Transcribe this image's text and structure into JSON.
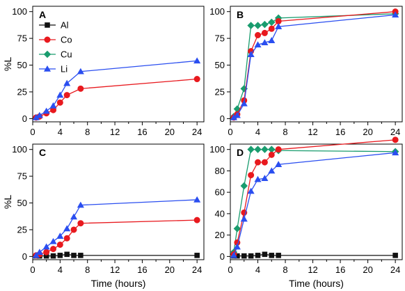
{
  "chart_data": [
    {
      "panel": "A",
      "type": "line",
      "xlabel": "",
      "ylabel": "%L",
      "xlim": [
        0,
        25
      ],
      "ylim": [
        -3,
        105
      ],
      "xticks": [
        "0",
        "4",
        "8",
        "12",
        "16",
        "20",
        "24"
      ],
      "yticks": [
        "0",
        "25",
        "50",
        "75",
        "100"
      ],
      "legend": {
        "placement": "top-left",
        "entries": [
          "Al",
          "Co",
          "Cu",
          "Li"
        ]
      },
      "series": [
        {
          "name": "Co",
          "color": "#e8191e",
          "marker": "circle",
          "x": [
            0.5,
            1,
            2,
            3,
            4,
            5,
            7,
            24
          ],
          "y": [
            1,
            2,
            5,
            8,
            15,
            22,
            28,
            37
          ]
        },
        {
          "name": "Li",
          "color": "#2a4ef0",
          "marker": "triangle",
          "x": [
            0.5,
            1,
            2,
            3,
            4,
            5,
            7,
            24
          ],
          "y": [
            1,
            3,
            7,
            12,
            22,
            33,
            44,
            54
          ]
        }
      ]
    },
    {
      "panel": "B",
      "type": "line",
      "xlabel": "",
      "ylabel": "",
      "xlim": [
        0,
        25
      ],
      "ylim": [
        -3,
        105
      ],
      "xticks": [
        "0",
        "4",
        "8",
        "12",
        "16",
        "20",
        "24"
      ],
      "yticks": [
        "0",
        "25",
        "50",
        "75",
        "100"
      ],
      "series": [
        {
          "name": "Cu",
          "color": "#199c6e",
          "marker": "diamond",
          "x": [
            0.5,
            1,
            2,
            3,
            4,
            5,
            6,
            7,
            24
          ],
          "y": [
            2,
            9,
            28,
            87,
            87,
            88,
            90,
            94,
            98
          ]
        },
        {
          "name": "Co",
          "color": "#e8191e",
          "marker": "circle",
          "x": [
            0.5,
            1,
            2,
            3,
            4,
            5,
            6,
            7,
            24
          ],
          "y": [
            1,
            4,
            17,
            63,
            78,
            80,
            84,
            91,
            100
          ]
        },
        {
          "name": "Li",
          "color": "#2a4ef0",
          "marker": "triangle",
          "x": [
            0.5,
            1,
            2,
            3,
            4,
            5,
            6,
            7,
            24
          ],
          "y": [
            1,
            3,
            14,
            60,
            69,
            71,
            73,
            86,
            97
          ]
        }
      ]
    },
    {
      "panel": "C",
      "type": "line",
      "xlabel": "Time (hours)",
      "ylabel": "%L",
      "xlim": [
        0,
        25
      ],
      "ylim": [
        -3,
        105
      ],
      "xticks": [
        "0",
        "4",
        "8",
        "12",
        "16",
        "20",
        "24"
      ],
      "yticks": [
        "0",
        "25",
        "50",
        "75",
        "100"
      ],
      "series": [
        {
          "name": "Al",
          "color": "#111111",
          "marker": "square",
          "x": [
            0.5,
            1,
            2,
            3,
            4,
            5,
            6,
            7,
            24
          ],
          "y": [
            0.5,
            0.5,
            0.5,
            0.5,
            1,
            2,
            1,
            1,
            1
          ]
        },
        {
          "name": "Co",
          "color": "#e8191e",
          "marker": "circle",
          "x": [
            0.5,
            1,
            2,
            3,
            4,
            5,
            6,
            7,
            24
          ],
          "y": [
            1,
            2,
            4,
            7,
            11,
            17,
            25,
            31,
            34
          ]
        },
        {
          "name": "Li",
          "color": "#2a4ef0",
          "marker": "triangle",
          "x": [
            0.5,
            1,
            2,
            3,
            4,
            5,
            6,
            7,
            24
          ],
          "y": [
            1,
            4,
            9,
            14,
            19,
            26,
            37,
            48,
            53
          ]
        }
      ]
    },
    {
      "panel": "D",
      "type": "line",
      "xlabel": "Time (hours)",
      "ylabel": "",
      "xlim": [
        0,
        25
      ],
      "ylim": [
        -3,
        105
      ],
      "xticks": [
        "0",
        "4",
        "8",
        "12",
        "16",
        "20",
        "24"
      ],
      "yticks": [
        "0",
        "20",
        "40",
        "60",
        "80",
        "100"
      ],
      "series": [
        {
          "name": "Al",
          "color": "#111111",
          "marker": "square",
          "x": [
            0.5,
            1,
            2,
            3,
            4,
            5,
            6,
            7,
            24
          ],
          "y": [
            0.5,
            0.5,
            0.5,
            0.5,
            1,
            2,
            1,
            1,
            1
          ]
        },
        {
          "name": "Cu",
          "color": "#199c6e",
          "marker": "diamond",
          "x": [
            0.5,
            1,
            2,
            3,
            4,
            5,
            6,
            7,
            24
          ],
          "y": [
            4,
            26,
            66,
            100,
            100,
            100,
            100,
            99,
            98
          ]
        },
        {
          "name": "Co",
          "color": "#e8191e",
          "marker": "circle",
          "x": [
            0.5,
            1,
            2,
            3,
            4,
            5,
            6,
            7,
            24
          ],
          "y": [
            2,
            13,
            41,
            76,
            88,
            88,
            95,
            100,
            109
          ]
        },
        {
          "name": "Li",
          "color": "#2a4ef0",
          "marker": "triangle",
          "x": [
            0.5,
            1,
            2,
            3,
            4,
            5,
            6,
            7,
            24
          ],
          "y": [
            1,
            9,
            35,
            61,
            72,
            73,
            80,
            86,
            97
          ]
        }
      ]
    }
  ]
}
